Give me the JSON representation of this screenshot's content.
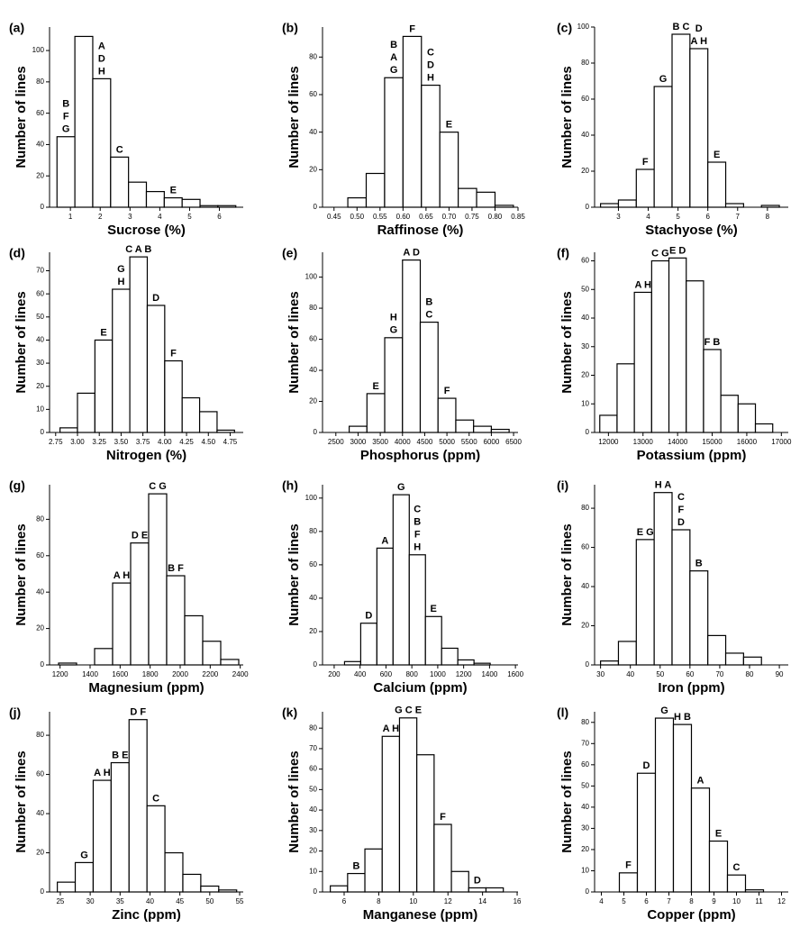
{
  "chart_data": [
    {
      "type": "histogram",
      "panel": "(a)",
      "xlabel": "Sucrose (%)",
      "ylabel": "Number of lines",
      "color": "#ffffff",
      "bins": [
        0.55,
        1.15,
        1.75,
        2.35,
        2.95,
        3.55,
        4.15,
        4.75,
        5.35,
        5.95,
        6.55
      ],
      "counts": [
        45,
        109,
        82,
        32,
        16,
        10,
        6,
        5,
        1,
        1
      ],
      "bar_labels": [
        [
          "B",
          "F",
          "G"
        ],
        null,
        [
          "A",
          "D",
          "H"
        ],
        [
          "C"
        ],
        null,
        null,
        [
          "E"
        ],
        null,
        null,
        null
      ],
      "xlim": [
        0.3,
        6.8
      ],
      "xticks": [
        1,
        2,
        3,
        4,
        5,
        6
      ],
      "ylim": [
        0,
        115
      ],
      "yticks": [
        0,
        20,
        40,
        60,
        80,
        100
      ]
    },
    {
      "type": "histogram",
      "panel": "(b)",
      "xlabel": "Raffinose (%)",
      "ylabel": "Number of lines",
      "color": "#ffffff",
      "bins": [
        0.48,
        0.52,
        0.56,
        0.6,
        0.64,
        0.68,
        0.72,
        0.76,
        0.8,
        0.84
      ],
      "counts": [
        5,
        18,
        69,
        91,
        65,
        40,
        10,
        8,
        1
      ],
      "bar_labels": [
        null,
        null,
        [
          "B",
          "A",
          "G"
        ],
        [
          "F"
        ],
        [
          "C",
          "D",
          "H"
        ],
        [
          "E"
        ],
        null,
        null,
        null
      ],
      "xlim": [
        0.425,
        0.85
      ],
      "xticks": [
        0.45,
        {
          "value": 0.5,
          "label": "0.50"
        },
        0.55,
        {
          "value": 0.6,
          "label": "0.60"
        },
        0.65,
        {
          "value": 0.7,
          "label": "0.70"
        },
        0.75,
        {
          "value": 0.8,
          "label": "0.80"
        },
        0.85
      ],
      "ylim": [
        0,
        96
      ],
      "yticks": [
        0,
        20,
        40,
        60,
        80
      ]
    },
    {
      "type": "histogram",
      "panel": "(c)",
      "xlabel": "Stachyose (%)",
      "ylabel": "Number of lines",
      "color": "#ffffff",
      "bins": [
        2.4,
        3,
        3.6,
        4.2,
        4.8,
        5.4,
        6,
        6.6,
        7.2,
        7.8,
        8.4
      ],
      "counts": [
        2,
        4,
        21,
        67,
        96,
        88,
        25,
        2,
        0,
        1
      ],
      "bar_labels": [
        null,
        null,
        [
          "F"
        ],
        [
          "G"
        ],
        [
          "B C"
        ],
        [
          "D",
          "A H"
        ],
        [
          "E"
        ],
        null,
        null,
        null
      ],
      "xlim": [
        2.2,
        8.7
      ],
      "xticks": [
        3,
        4,
        5,
        6,
        7,
        8
      ],
      "ylim": [
        0,
        100
      ],
      "yticks": [
        0,
        20,
        40,
        60,
        80,
        100
      ]
    },
    {
      "type": "histogram",
      "panel": "(d)",
      "xlabel": "Nitrogen (%)",
      "ylabel": "Number of lines",
      "color": "#ffffff",
      "bins": [
        2.8,
        3,
        3.2,
        3.4,
        3.6,
        3.8,
        4,
        4.2,
        4.4,
        4.6,
        4.8
      ],
      "counts": [
        2,
        17,
        40,
        62,
        76,
        55,
        31,
        15,
        9,
        1
      ],
      "bar_labels": [
        null,
        null,
        [
          "E"
        ],
        [
          "G",
          "H"
        ],
        [
          "C A B"
        ],
        [
          "D"
        ],
        [
          "F"
        ],
        null,
        null,
        null
      ],
      "xlim": [
        2.68,
        4.9
      ],
      "xticks": [
        2.75,
        {
          "value": 3,
          "label": "3.00"
        },
        3.25,
        {
          "value": 3.5,
          "label": "3.50"
        },
        3.75,
        {
          "value": 4,
          "label": "4.00"
        },
        4.25,
        {
          "value": 4.5,
          "label": "4.50"
        },
        4.75
      ],
      "ylim": [
        0,
        78
      ],
      "yticks": [
        0,
        10,
        20,
        30,
        40,
        50,
        60,
        70
      ]
    },
    {
      "type": "histogram",
      "panel": "(e)",
      "xlabel": "Phosphorus (ppm)",
      "ylabel": "Number of lines",
      "color": "#ffffff",
      "bins": [
        2800,
        3200,
        3600,
        4000,
        4400,
        4800,
        5200,
        5600,
        6000,
        6400
      ],
      "counts": [
        4,
        25,
        61,
        111,
        71,
        22,
        8,
        4,
        2
      ],
      "bar_labels": [
        null,
        [
          "E"
        ],
        [
          "H",
          "G"
        ],
        [
          "A D"
        ],
        [
          "B",
          "C"
        ],
        [
          "F"
        ],
        null,
        null,
        null
      ],
      "xlim": [
        2200,
        6600
      ],
      "xticks": [
        2500,
        3000,
        3500,
        4000,
        4500,
        5000,
        5500,
        6000,
        6500
      ],
      "ylim": [
        0,
        116
      ],
      "yticks": [
        0,
        20,
        40,
        60,
        80,
        100
      ]
    },
    {
      "type": "histogram",
      "panel": "(f)",
      "xlabel": "Potassium (ppm)",
      "ylabel": "Number of lines",
      "color": "#ffffff",
      "bins": [
        11750,
        12250,
        12750,
        13250,
        13750,
        14250,
        14750,
        15250,
        15750,
        16250,
        16750
      ],
      "counts": [
        6,
        24,
        49,
        60,
        61,
        53,
        29,
        13,
        10,
        3
      ],
      "bar_labels": [
        null,
        null,
        [
          "A H"
        ],
        [
          "C G"
        ],
        [
          "E D"
        ],
        null,
        [
          "F B"
        ],
        null,
        null,
        null
      ],
      "xlim": [
        11600,
        17200
      ],
      "xticks": [
        12000,
        13000,
        14000,
        15000,
        16000,
        17000
      ],
      "ylim": [
        0,
        63
      ],
      "yticks": [
        0,
        10,
        20,
        30,
        40,
        50,
        60
      ]
    },
    {
      "type": "histogram",
      "panel": "(g)",
      "xlabel": "Magnesium (ppm)",
      "ylabel": "Number of lines",
      "color": "#ffffff",
      "bins": [
        1190,
        1310,
        1430,
        1550,
        1670,
        1790,
        1910,
        2030,
        2150,
        2270,
        2390
      ],
      "counts": [
        1,
        0,
        9,
        45,
        67,
        94,
        49,
        27,
        13,
        3
      ],
      "bar_labels": [
        null,
        null,
        null,
        [
          "A H"
        ],
        [
          "D E"
        ],
        [
          "C G"
        ],
        [
          "B F"
        ],
        null,
        null,
        null
      ],
      "xlim": [
        1130,
        2420
      ],
      "xticks": [
        1200,
        1400,
        1600,
        1800,
        2000,
        2200,
        2400
      ],
      "ylim": [
        0,
        99
      ],
      "yticks": [
        0,
        20,
        40,
        60,
        80
      ]
    },
    {
      "type": "histogram",
      "panel": "(h)",
      "xlabel": "Calcium (ppm)",
      "ylabel": "Number of lines",
      "color": "#ffffff",
      "bins": [
        280,
        405,
        530,
        655,
        780,
        905,
        1030,
        1155,
        1280,
        1405
      ],
      "counts": [
        2,
        25,
        70,
        102,
        66,
        29,
        10,
        3,
        1
      ],
      "bar_labels": [
        null,
        [
          "D"
        ],
        [
          "A"
        ],
        [
          "G"
        ],
        [
          "C",
          "B",
          "F",
          "H"
        ],
        [
          "E"
        ],
        null,
        null,
        null
      ],
      "xlim": [
        110,
        1620
      ],
      "xticks": [
        200,
        400,
        600,
        800,
        1000,
        1200,
        1400,
        1600
      ],
      "ylim": [
        0,
        108
      ],
      "yticks": [
        0,
        20,
        40,
        60,
        80,
        100
      ]
    },
    {
      "type": "histogram",
      "panel": "(i)",
      "xlabel": "Iron (ppm)",
      "ylabel": "Number of lines",
      "color": "#ffffff",
      "bins": [
        30,
        36,
        42,
        48,
        54,
        60,
        66,
        72,
        78,
        84
      ],
      "counts": [
        2,
        12,
        64,
        88,
        69,
        48,
        15,
        6,
        4
      ],
      "bar_labels": [
        null,
        null,
        [
          "E G"
        ],
        [
          "H A"
        ],
        [
          "C",
          "F",
          "D"
        ],
        [
          "B"
        ],
        null,
        null,
        null
      ],
      "xlim": [
        28,
        93
      ],
      "xticks": [
        30,
        40,
        50,
        60,
        70,
        80,
        90
      ],
      "ylim": [
        0,
        92
      ],
      "yticks": [
        0,
        20,
        40,
        60,
        80
      ]
    },
    {
      "type": "histogram",
      "panel": "(j)",
      "xlabel": "Zinc (ppm)",
      "ylabel": "Number of lines",
      "color": "#ffffff",
      "bins": [
        24.5,
        27.5,
        30.5,
        33.5,
        36.5,
        39.5,
        42.5,
        45.5,
        48.5,
        51.5,
        54.5
      ],
      "counts": [
        5,
        15,
        57,
        66,
        88,
        44,
        20,
        9,
        3,
        1
      ],
      "bar_labels": [
        null,
        [
          "G"
        ],
        [
          "A H"
        ],
        [
          "B E"
        ],
        [
          "D F"
        ],
        [
          "C"
        ],
        null,
        null,
        null,
        null
      ],
      "xlim": [
        23.2,
        55.6
      ],
      "xticks": [
        25,
        30,
        35,
        40,
        45,
        50,
        55
      ],
      "ylim": [
        0,
        92
      ],
      "yticks": [
        0,
        20,
        40,
        60,
        80
      ]
    },
    {
      "type": "histogram",
      "panel": "(k)",
      "xlabel": "Manganese (ppm)",
      "ylabel": "Number of lines",
      "color": "#ffffff",
      "bins": [
        5.2,
        6.2,
        7.2,
        8.2,
        9.2,
        10.2,
        11.2,
        12.2,
        13.2,
        14.2,
        15.2
      ],
      "counts": [
        3,
        9,
        21,
        76,
        85,
        67,
        33,
        10,
        2,
        2
      ],
      "bar_labels": [
        null,
        [
          "B"
        ],
        null,
        [
          "A H"
        ],
        [
          "G C E"
        ],
        null,
        [
          "F"
        ],
        null,
        [
          "D"
        ],
        null
      ],
      "xlim": [
        4.75,
        16.05
      ],
      "xticks": [
        6,
        8,
        10,
        12,
        14,
        16
      ],
      "ylim": [
        0,
        88
      ],
      "yticks": [
        0,
        10,
        20,
        30,
        40,
        50,
        60,
        70,
        80
      ]
    },
    {
      "type": "histogram",
      "panel": "(l)",
      "xlabel": "Copper (ppm)",
      "ylabel": "Number of lines",
      "color": "#ffffff",
      "bins": [
        4.8,
        5.6,
        6.4,
        7.2,
        8,
        8.8,
        9.6,
        10.4,
        11.2
      ],
      "counts": [
        9,
        56,
        82,
        79,
        49,
        24,
        8,
        1
      ],
      "bar_labels": [
        [
          "F"
        ],
        [
          "D"
        ],
        [
          "G"
        ],
        [
          "H B"
        ],
        [
          "A"
        ],
        [
          "E"
        ],
        [
          "C"
        ],
        null
      ],
      "xlim": [
        3.7,
        12.3
      ],
      "xticks": [
        4,
        5,
        6,
        7,
        8,
        9,
        10,
        11,
        12
      ],
      "ylim": [
        0,
        85
      ],
      "yticks": [
        0,
        10,
        20,
        30,
        40,
        50,
        60,
        70,
        80
      ]
    }
  ]
}
